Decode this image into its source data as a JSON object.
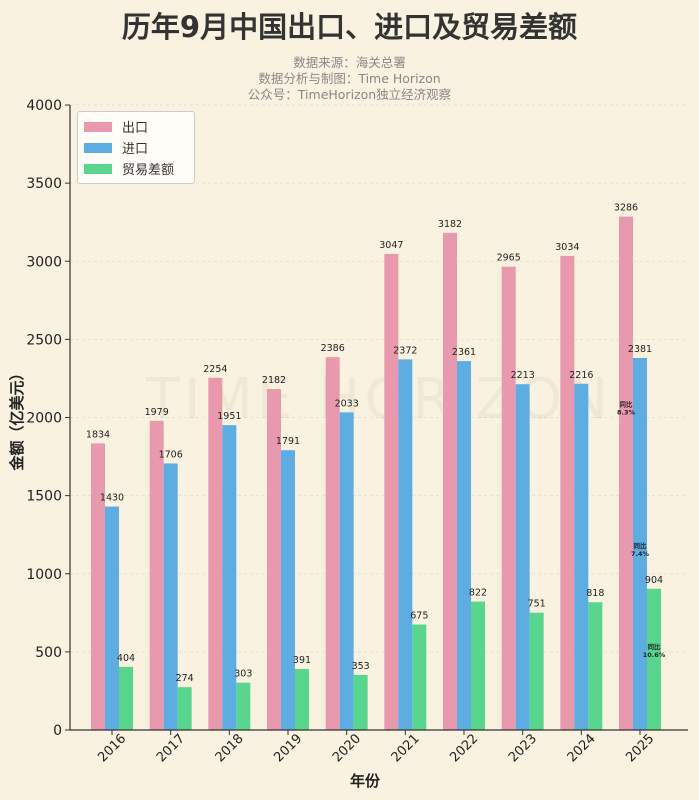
{
  "chart_data": {
    "type": "bar",
    "title": "历年9月中国出口、进口及贸易差额",
    "subtitles": [
      "数据来源：海关总署",
      "数据分析与制图：Time Horizon",
      "公众号：TimeHorizon独立经济观察"
    ],
    "xlabel": "年份",
    "ylabel": "金额（亿美元）",
    "ylim": [
      0,
      4000
    ],
    "yticks": [
      0,
      500,
      1000,
      1500,
      2000,
      2500,
      3000,
      3500,
      4000
    ],
    "grid": true,
    "legend_position": "top-left",
    "watermark": "TIME HORIZON",
    "categories": [
      "2016",
      "2017",
      "2018",
      "2019",
      "2020",
      "2021",
      "2022",
      "2023",
      "2024",
      "2025"
    ],
    "series": [
      {
        "name": "出口",
        "color": "#e899ad",
        "values": [
          1834,
          1979,
          2254,
          2182,
          2386,
          3047,
          3182,
          2965,
          3034,
          3286
        ]
      },
      {
        "name": "进口",
        "color": "#5dade2",
        "values": [
          1430,
          1706,
          1951,
          1791,
          2033,
          2372,
          2361,
          2213,
          2216,
          2381
        ]
      },
      {
        "name": "贸易差额",
        "color": "#58d68d",
        "values": [
          404,
          274,
          303,
          391,
          353,
          675,
          822,
          751,
          818,
          904
        ]
      }
    ],
    "annotations": [
      {
        "series": "出口",
        "category": "2025",
        "label": "同比",
        "value": "8.3%"
      },
      {
        "series": "进口",
        "category": "2025",
        "label": "同比",
        "value": "7.4%"
      },
      {
        "series": "贸易差额",
        "category": "2025",
        "label": "同比",
        "value": "10.6%"
      }
    ]
  }
}
